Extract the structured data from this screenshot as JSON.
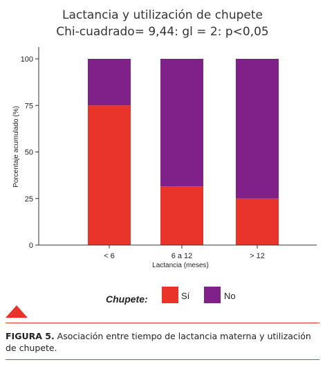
{
  "chart_data": {
    "type": "bar",
    "stacked": true,
    "title": "Lactancia y utilización de chupete",
    "subtitle": "Chi-cuadrado= 9,44: gl = 2: p<0,05",
    "xlabel": "Lactancia (meses)",
    "ylabel": "Porcentaje acumulado (%)",
    "ylim": [
      0,
      100
    ],
    "yticks": [
      0,
      25,
      50,
      75,
      100
    ],
    "categories": [
      "< 6",
      "6 a 12",
      "> 12"
    ],
    "series": [
      {
        "name": "Sí",
        "color": "#e8342a",
        "values": [
          75,
          31.5,
          25
        ]
      },
      {
        "name": "No",
        "color": "#80218a",
        "values": [
          25,
          68.5,
          75
        ]
      }
    ],
    "grid": false,
    "legend": {
      "title": "Chupete:",
      "position": "bottom"
    }
  },
  "decoration": {
    "accent_color": "#e8342a",
    "icon": "triangle-icon"
  },
  "caption": {
    "label": "FIGURA 5.",
    "text": " Asociación entre tiempo de lactancia materna y utilización de chupete."
  }
}
